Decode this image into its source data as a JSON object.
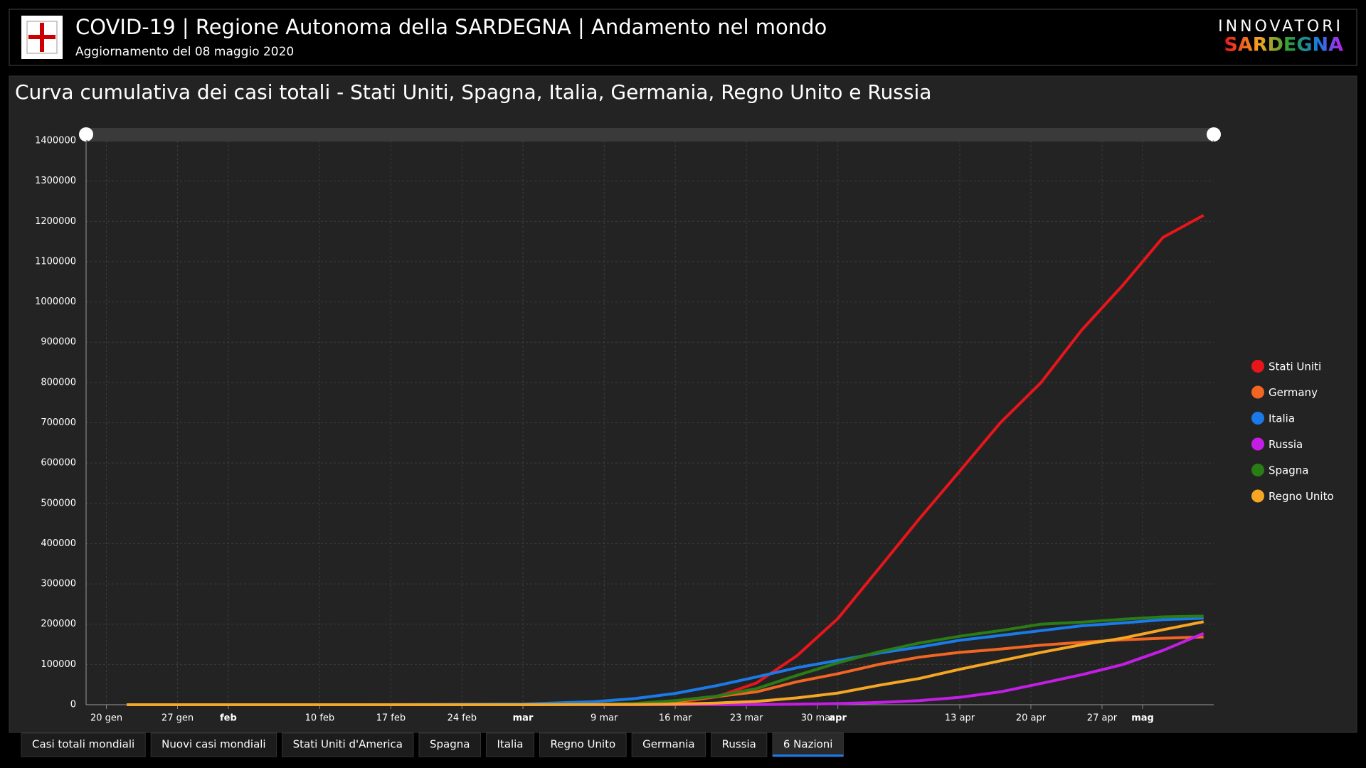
{
  "header": {
    "title": "COVID-19 | Regione Autonoma della SARDEGNA | Andamento nel mondo",
    "subtitle": "Aggiornamento del 08 maggio 2020",
    "logo_top": "INNOVATORI",
    "logo_bottom": "SARDEGNA"
  },
  "tabs": {
    "items": [
      "Casi totali mondiali",
      "Nuovi casi mondiali",
      "Stati Uniti d'America",
      "Spagna",
      "Italia",
      "Regno Unito",
      "Germania",
      "Russia",
      "6 Nazioni"
    ],
    "active": 8
  },
  "chart_data": {
    "type": "line",
    "title": "Curva cumulativa dei casi totali - Stati Uniti, Spagna, Italia, Germania, Regno Unito e Russia",
    "x": [
      "2020-01-22",
      "2020-02-01",
      "2020-02-15",
      "2020-03-01",
      "2020-03-08",
      "2020-03-12",
      "2020-03-16",
      "2020-03-20",
      "2020-03-24",
      "2020-03-28",
      "2020-04-01",
      "2020-04-05",
      "2020-04-09",
      "2020-04-13",
      "2020-04-17",
      "2020-04-21",
      "2020-04-25",
      "2020-04-29",
      "2020-05-03",
      "2020-05-07"
    ],
    "series": [
      {
        "name": "Stati Uniti",
        "color": "#e8151b",
        "values": [
          0,
          8,
          15,
          70,
          500,
          1600,
          4600,
          19000,
          54000,
          122000,
          214000,
          337000,
          461000,
          580000,
          700000,
          800000,
          930000,
          1040000,
          1160000,
          1215000
        ]
      },
      {
        "name": "Germany",
        "color": "#f26522",
        "values": [
          0,
          10,
          16,
          130,
          1040,
          2700,
          7200,
          20000,
          32000,
          57000,
          77000,
          100000,
          118000,
          130000,
          138000,
          148000,
          155000,
          161000,
          165000,
          168000
        ]
      },
      {
        "name": "Italia",
        "color": "#1a7ae8",
        "values": [
          0,
          2,
          3,
          1700,
          7400,
          15100,
          28000,
          47000,
          69000,
          92000,
          110000,
          128000,
          143000,
          160000,
          172000,
          184000,
          196000,
          203000,
          211000,
          215000
        ]
      },
      {
        "name": "Russia",
        "color": "#c41ee6",
        "values": [
          0,
          2,
          2,
          2,
          17,
          34,
          93,
          253,
          495,
          1264,
          2777,
          5389,
          10131,
          18328,
          32008,
          52763,
          74588,
          99399,
          134687,
          177000
        ]
      },
      {
        "name": "Spagna",
        "color": "#2a7d16",
        "values": [
          0,
          1,
          2,
          80,
          670,
          3000,
          10000,
          21000,
          40000,
          73000,
          104000,
          131000,
          153000,
          170000,
          184000,
          200000,
          205000,
          212000,
          218000,
          220000
        ]
      },
      {
        "name": "Regno Unito",
        "color": "#f5a623",
        "values": [
          0,
          2,
          9,
          36,
          273,
          590,
          1540,
          4000,
          8100,
          17000,
          29000,
          48000,
          65000,
          88000,
          109000,
          130000,
          149000,
          165000,
          186000,
          206000
        ]
      }
    ],
    "xlim": [
      "2020-01-18",
      "2020-05-08"
    ],
    "xticks": [
      {
        "value": "2020-01-20",
        "label": "20 gen"
      },
      {
        "value": "2020-01-27",
        "label": "27 gen"
      },
      {
        "value": "2020-02-01",
        "label": "feb"
      },
      {
        "value": "2020-02-10",
        "label": "10 feb"
      },
      {
        "value": "2020-02-17",
        "label": "17 feb"
      },
      {
        "value": "2020-02-24",
        "label": "24 feb"
      },
      {
        "value": "2020-03-01",
        "label": "mar"
      },
      {
        "value": "2020-03-09",
        "label": "9 mar"
      },
      {
        "value": "2020-03-16",
        "label": "16 mar"
      },
      {
        "value": "2020-03-23",
        "label": "23 mar"
      },
      {
        "value": "2020-03-30",
        "label": "30 mar"
      },
      {
        "value": "2020-04-01",
        "label": "apr"
      },
      {
        "value": "2020-04-13",
        "label": "13 apr"
      },
      {
        "value": "2020-04-20",
        "label": "20 apr"
      },
      {
        "value": "2020-04-27",
        "label": "27 apr"
      },
      {
        "value": "2020-05-01",
        "label": "mag"
      }
    ],
    "ylim": [
      0,
      1400000
    ],
    "yticks": [
      0,
      100000,
      200000,
      300000,
      400000,
      500000,
      600000,
      700000,
      800000,
      900000,
      1000000,
      1100000,
      1200000,
      1300000,
      1400000
    ],
    "grid": true,
    "legend": "right"
  }
}
